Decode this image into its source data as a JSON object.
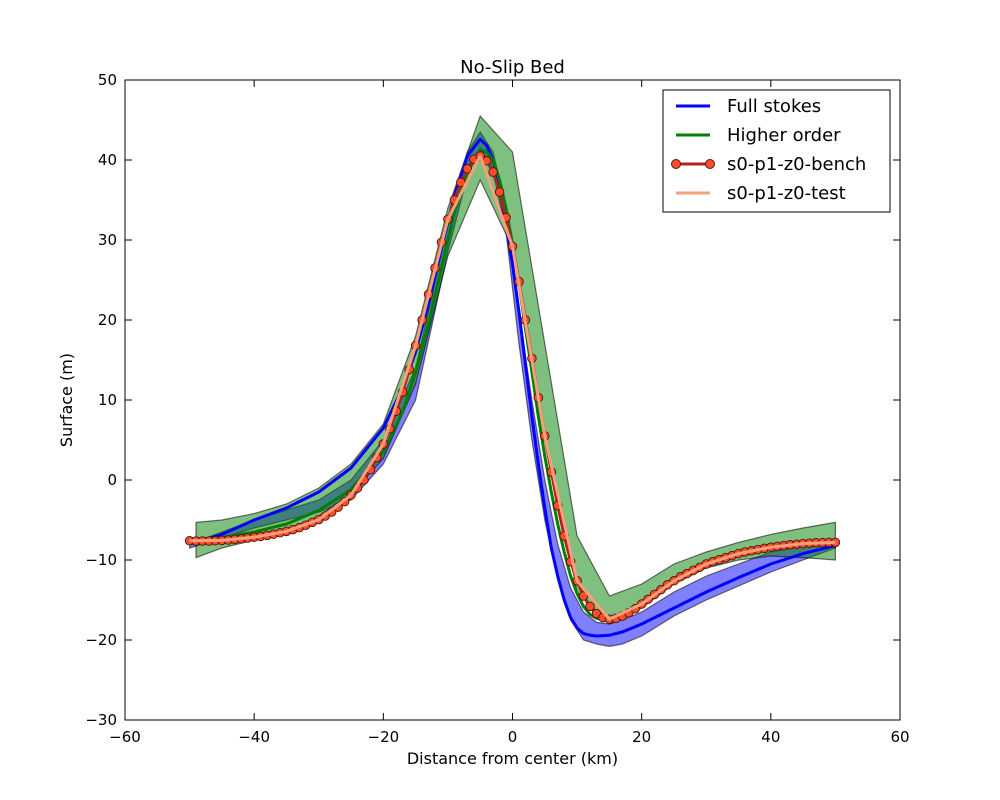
{
  "chart_data": {
    "type": "line",
    "title": "No-Slip Bed",
    "xlabel": "Distance from center (km)",
    "ylabel": "Surface (m)",
    "xlim": [
      -60,
      60
    ],
    "ylim": [
      -30,
      50
    ],
    "xticks": [
      -60,
      -40,
      -20,
      0,
      20,
      40,
      60
    ],
    "yticks": [
      -30,
      -20,
      -10,
      0,
      10,
      20,
      30,
      40,
      50
    ],
    "xtick_labels": [
      "−60",
      "−40",
      "−20",
      "0",
      "20",
      "40",
      "60"
    ],
    "ytick_labels": [
      "−30",
      "−20",
      "−10",
      "0",
      "10",
      "20",
      "30",
      "40",
      "50"
    ],
    "grid": false,
    "legend_position": "top-right",
    "colors": {
      "full_stokes": "#0000ff",
      "higher_order": "#008000",
      "bench_line": "#b22222",
      "bench_marker": "#ff4c2b",
      "test": "#f4a07a"
    },
    "bands": [
      {
        "series": "Full stokes",
        "color": "#0000ff",
        "x": [
          -50,
          -40,
          -30,
          -25,
          -20,
          -15,
          -10,
          -7,
          -5,
          -3,
          -1,
          1,
          3,
          5,
          7,
          9,
          11,
          13,
          15,
          17,
          20,
          25,
          30,
          40,
          50
        ],
        "upper": [
          -8,
          -5,
          -2.5,
          0,
          5,
          14,
          32,
          41,
          43.5,
          41,
          34,
          21,
          10,
          0,
          -8,
          -13.5,
          -16.5,
          -17.8,
          -18,
          -17.5,
          -16.5,
          -14,
          -12,
          -9,
          -7.5
        ],
        "lower": [
          -8.5,
          -6,
          -4,
          -2.5,
          2,
          10,
          28.5,
          38,
          41.5,
          38.5,
          31,
          17,
          5,
          -5,
          -12.5,
          -17.5,
          -20,
          -20.5,
          -20.8,
          -20.5,
          -19.5,
          -17,
          -15,
          -11.5,
          -8.5
        ]
      },
      {
        "series": "Higher order",
        "color": "#008000",
        "x": [
          -49,
          -45,
          -40,
          -35,
          -30,
          -25,
          -20,
          -15,
          -10,
          -5,
          0,
          5,
          10,
          15,
          20,
          25,
          30,
          35,
          40,
          45,
          50
        ],
        "upper": [
          -5.3,
          -5,
          -4.2,
          -3,
          -1,
          2,
          7,
          18,
          34,
          45.5,
          41,
          17,
          -7,
          -14.5,
          -13,
          -10.5,
          -9,
          -7.8,
          -6.8,
          -6,
          -5.3
        ],
        "lower": [
          -9.7,
          -8.5,
          -7.5,
          -6.3,
          -4.5,
          -1.8,
          2.7,
          12,
          28,
          37.5,
          29,
          6,
          -14,
          -18,
          -16,
          -13,
          -11,
          -10,
          -9.5,
          -9.7,
          -10
        ]
      }
    ],
    "series": [
      {
        "name": "Full stokes",
        "style": "line",
        "color": "#0000ff",
        "x": [
          -50,
          -45,
          -40,
          -35,
          -30,
          -25,
          -20,
          -17,
          -15,
          -13,
          -11,
          -9,
          -7,
          -5,
          -4,
          -3,
          -2,
          -1,
          0,
          1,
          2,
          3,
          4,
          5,
          6,
          7,
          8,
          9,
          10,
          11,
          12,
          13,
          15,
          17,
          20,
          25,
          30,
          35,
          40,
          45,
          50
        ],
        "y": [
          -8,
          -6.8,
          -5,
          -3.5,
          -1.5,
          1.5,
          6.5,
          11.5,
          16,
          22,
          29,
          35.5,
          40.5,
          42.6,
          41.8,
          40,
          36.5,
          32,
          27,
          21,
          14.5,
          8,
          2,
          -3.5,
          -8.5,
          -12,
          -15,
          -17.2,
          -18.5,
          -19.2,
          -19.4,
          -19.5,
          -19.4,
          -19,
          -18,
          -16,
          -14,
          -12.2,
          -10.5,
          -9.2,
          -8.2
        ]
      },
      {
        "name": "Higher order",
        "style": "line",
        "color": "#008000",
        "x": [
          -50,
          -45,
          -40,
          -35,
          -30,
          -25,
          -20,
          -17,
          -15,
          -13,
          -11,
          -9,
          -7,
          -5,
          -4,
          -3,
          -2,
          -1,
          0,
          1,
          2,
          3,
          4,
          5,
          6,
          7,
          8,
          9,
          10,
          11,
          12,
          13,
          15,
          17,
          20,
          25,
          30,
          35,
          40,
          45,
          50
        ],
        "y": [
          -7.5,
          -7.2,
          -6.5,
          -5.5,
          -3.8,
          -1.2,
          3.5,
          8.5,
          13.5,
          19.5,
          26.5,
          33.5,
          38.5,
          41.2,
          41,
          40,
          37.5,
          34,
          29.5,
          24.5,
          19,
          13.5,
          8,
          3,
          -1.5,
          -5.5,
          -9,
          -12,
          -14.2,
          -15.8,
          -16.8,
          -17.3,
          -17.3,
          -16.8,
          -15.3,
          -12.8,
          -10.8,
          -9.5,
          -8.6,
          -8.2,
          -8
        ]
      },
      {
        "name": "s0-p1-z0-bench",
        "style": "line-markers",
        "color": "#b22222",
        "marker_color": "#ff4c2b",
        "x": [
          -50,
          -49,
          -48,
          -47,
          -46,
          -45,
          -44,
          -43,
          -42,
          -41,
          -40,
          -39,
          -38,
          -37,
          -36,
          -35,
          -34,
          -33,
          -32,
          -31,
          -30,
          -29,
          -28,
          -27,
          -26,
          -25,
          -24,
          -23,
          -22,
          -21,
          -20,
          -19,
          -18,
          -17,
          -16,
          -15,
          -14,
          -13,
          -12,
          -11,
          -10,
          -9,
          -8,
          -7,
          -6,
          -5,
          -4,
          -3,
          -2,
          -1,
          0,
          1,
          2,
          3,
          4,
          5,
          6,
          7,
          8,
          9,
          10,
          11,
          12,
          13,
          14,
          15,
          16,
          17,
          18,
          19,
          20,
          21,
          22,
          23,
          24,
          25,
          26,
          27,
          28,
          29,
          30,
          31,
          32,
          33,
          34,
          35,
          36,
          37,
          38,
          39,
          40,
          41,
          42,
          43,
          44,
          45,
          46,
          47,
          48,
          49,
          50
        ],
        "y": [
          -7.6,
          -7.62,
          -7.63,
          -7.62,
          -7.6,
          -7.55,
          -7.5,
          -7.43,
          -7.35,
          -7.25,
          -7.15,
          -7.05,
          -6.92,
          -6.78,
          -6.6,
          -6.42,
          -6.2,
          -5.95,
          -5.65,
          -5.3,
          -4.95,
          -4.5,
          -4,
          -3.4,
          -2.7,
          -1.9,
          -1,
          0,
          1.3,
          2.8,
          4.5,
          6.4,
          8.6,
          11,
          13.8,
          16.8,
          20,
          23.2,
          26.5,
          29.7,
          32.6,
          35,
          37.2,
          38.9,
          40.1,
          40.5,
          39.9,
          38.5,
          36,
          32.8,
          29.2,
          24.8,
          20,
          15.2,
          10.3,
          5.5,
          1,
          -3.2,
          -7,
          -10.2,
          -12.6,
          -14.5,
          -15.8,
          -16.7,
          -17.2,
          -17.4,
          -17.3,
          -17,
          -16.6,
          -16.1,
          -15.5,
          -14.9,
          -14.3,
          -13.7,
          -13.1,
          -12.6,
          -12.1,
          -11.7,
          -11.3,
          -10.9,
          -10.5,
          -10.2,
          -9.95,
          -9.7,
          -9.45,
          -9.2,
          -9,
          -8.85,
          -8.7,
          -8.55,
          -8.4,
          -8.3,
          -8.2,
          -8.1,
          -8.02,
          -7.95,
          -7.9,
          -7.85,
          -7.82,
          -7.8,
          -7.8
        ]
      },
      {
        "name": "s0-p1-z0-test",
        "style": "line",
        "color": "#f4a07a",
        "x": [
          -50,
          -45,
          -40,
          -35,
          -30,
          -25,
          -20,
          -15,
          -10,
          -5,
          0,
          5,
          10,
          15,
          20,
          25,
          30,
          35,
          40,
          45,
          50
        ],
        "y": [
          -7.6,
          -7.55,
          -7.15,
          -6.42,
          -4.95,
          -1.9,
          4.5,
          16.8,
          32.6,
          40.5,
          29.2,
          5.5,
          -12.6,
          -17.4,
          -15.5,
          -12.6,
          -10.5,
          -9.2,
          -8.4,
          -7.95,
          -7.8
        ]
      }
    ]
  }
}
